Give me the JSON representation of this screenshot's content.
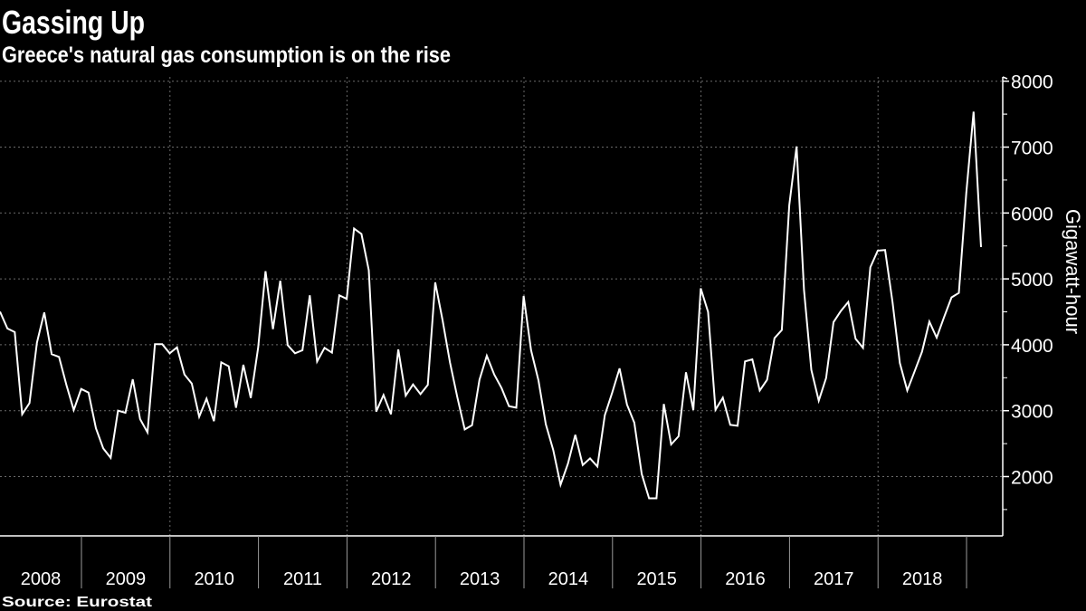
{
  "colors": {
    "background": "#000000",
    "line": "#ffffff",
    "grid": "#6a6a6a",
    "text": "#ffffff"
  },
  "chart_data": {
    "type": "line",
    "title": "Gassing Up",
    "subtitle": "Greece's natural gas consumption is on the rise",
    "source": "Source:  Eurostat",
    "xlabel": "",
    "ylabel": "Gigawatt-hour",
    "start_month": "2008-02",
    "frequency": "monthly",
    "ylim": [
      1100,
      8100
    ],
    "y_ticks": [
      2000,
      3000,
      4000,
      5000,
      6000,
      7000,
      8000
    ],
    "y_tick_labels": [
      "2000",
      "3000",
      "4000",
      "5000",
      "6000",
      "7000",
      "8000"
    ],
    "x_tick_labels": [
      "2008",
      "2009",
      "2010",
      "2011",
      "2012",
      "2013",
      "2014",
      "2015",
      "2016",
      "2017",
      "2018"
    ],
    "grid": true,
    "y_axis_side": "right",
    "series": [
      {
        "name": "Natural gas consumption",
        "values": [
          4503,
          4247,
          4192,
          2945,
          3115,
          4031,
          4490,
          3857,
          3816,
          3390,
          3009,
          3330,
          3275,
          2734,
          2427,
          2285,
          3000,
          2968,
          3477,
          2872,
          2670,
          4008,
          4008,
          3871,
          3962,
          3550,
          3412,
          2908,
          3183,
          2840,
          3733,
          3674,
          3046,
          3697,
          3192,
          3962,
          5117,
          4237,
          4971,
          3995,
          3871,
          3917,
          4751,
          3747,
          3953,
          3880,
          4751,
          4696,
          5764,
          5681,
          5131,
          2986,
          3238,
          2945,
          3930,
          3229,
          3399,
          3252,
          3390,
          4948,
          4375,
          3733,
          3206,
          2716,
          2780,
          3468,
          3834,
          3550,
          3344,
          3069,
          3046,
          4742,
          3917,
          3459,
          2794,
          2404,
          1877,
          2198,
          2633,
          2175,
          2276,
          2152,
          2931,
          3275,
          3642,
          3092,
          2817,
          2038,
          1671,
          1671,
          3101,
          2487,
          2611,
          3582,
          3009,
          4856,
          4499,
          3014,
          3197,
          2785,
          2771,
          3747,
          3779,
          3307,
          3468,
          4100,
          4224,
          6116,
          7010,
          4833,
          3619,
          3151,
          3495,
          4343,
          4513,
          4650,
          4091,
          3953,
          5177,
          5429,
          5438,
          4650,
          3724,
          3307,
          3596,
          3894,
          4352,
          4109,
          4421,
          4719,
          4787,
          6300,
          7537,
          5484
        ]
      }
    ]
  }
}
